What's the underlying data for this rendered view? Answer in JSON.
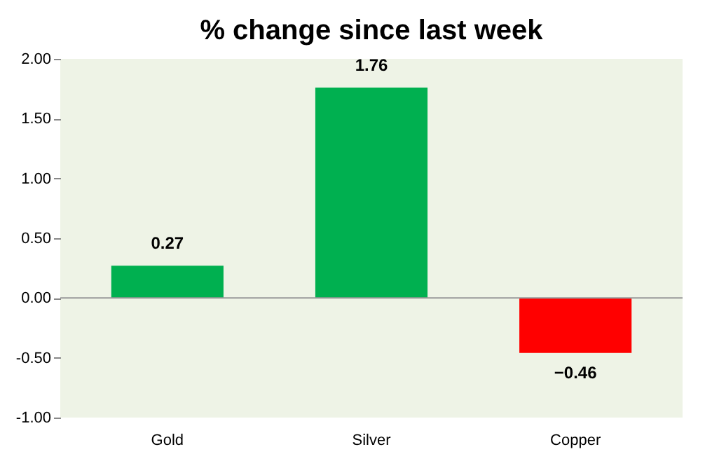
{
  "chart_data": {
    "type": "bar",
    "title": "% change since last week",
    "categories": [
      "Gold",
      "Silver",
      "Copper"
    ],
    "values": [
      0.27,
      1.76,
      -0.46
    ],
    "colors": [
      "#00b050",
      "#00b050",
      "#ff0000"
    ],
    "ylim": [
      -1,
      2
    ],
    "yticks": [
      {
        "value": -1,
        "label": "-1.00"
      },
      {
        "value": -0.5,
        "label": "-0.50"
      },
      {
        "value": 0,
        "label": "0.00"
      },
      {
        "value": 0.5,
        "label": "0.50"
      },
      {
        "value": 1,
        "label": "1.00"
      },
      {
        "value": 1.5,
        "label": "1.50"
      },
      {
        "value": 2,
        "label": "2.00"
      }
    ],
    "data_labels": true
  }
}
